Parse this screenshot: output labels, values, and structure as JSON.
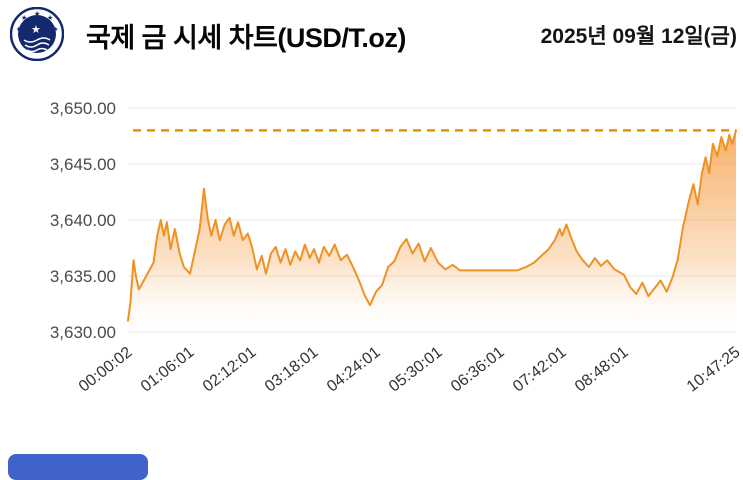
{
  "header": {
    "title": "국제 금 시세 차트(USD/T.oz)",
    "date": "2025년 09월 12일(금)",
    "logo_name": "gold-exchange-emblem"
  },
  "chart_data": {
    "type": "area",
    "title": "국제 금 시세 차트(USD/T.oz)",
    "date_label": "2025년 09월 12일(금)",
    "unit": "USD/T.oz",
    "ylim": [
      3630,
      3650
    ],
    "grid": "horizontal",
    "legend": "none",
    "colors": {
      "line": "#ef9224",
      "fill_top": "#f6a452",
      "fill_bottom": "#ffffff",
      "reference": "#f08c00",
      "grid": "#e7e7e7",
      "axis_text": "#4b4b4b"
    },
    "y_ticks": [
      {
        "label": "3,650.00",
        "value": 3650
      },
      {
        "label": "3,645.00",
        "value": 3645
      },
      {
        "label": "3,640.00",
        "value": 3640
      },
      {
        "label": "3,635.00",
        "value": 3635
      },
      {
        "label": "3,630.00",
        "value": 3630
      }
    ],
    "x_ticks": [
      {
        "label": "00:00:02",
        "pos": 0.0
      },
      {
        "label": "01:06:01",
        "pos": 0.102
      },
      {
        "label": "02:12:01",
        "pos": 0.204
      },
      {
        "label": "03:18:01",
        "pos": 0.306
      },
      {
        "label": "04:24:01",
        "pos": 0.408
      },
      {
        "label": "05:30:01",
        "pos": 0.51
      },
      {
        "label": "06:36:01",
        "pos": 0.612
      },
      {
        "label": "07:42:01",
        "pos": 0.714
      },
      {
        "label": "08:48:01",
        "pos": 0.816
      },
      {
        "label": "10:47:25",
        "pos": 1.0
      }
    ],
    "reference_line": {
      "value": 3648.0,
      "style": "dashed"
    },
    "series": [
      {
        "name": "gold-price",
        "points": [
          [
            0.0,
            3631.0
          ],
          [
            0.004,
            3632.6
          ],
          [
            0.009,
            3636.4
          ],
          [
            0.013,
            3635.0
          ],
          [
            0.018,
            3633.8
          ],
          [
            0.026,
            3634.6
          ],
          [
            0.034,
            3635.4
          ],
          [
            0.042,
            3636.2
          ],
          [
            0.048,
            3638.6
          ],
          [
            0.054,
            3640.0
          ],
          [
            0.059,
            3638.6
          ],
          [
            0.064,
            3639.8
          ],
          [
            0.07,
            3637.4
          ],
          [
            0.077,
            3639.2
          ],
          [
            0.085,
            3637.0
          ],
          [
            0.092,
            3635.8
          ],
          [
            0.102,
            3635.2
          ],
          [
            0.11,
            3637.2
          ],
          [
            0.118,
            3639.2
          ],
          [
            0.125,
            3642.8
          ],
          [
            0.131,
            3640.2
          ],
          [
            0.137,
            3638.6
          ],
          [
            0.144,
            3640.0
          ],
          [
            0.151,
            3638.2
          ],
          [
            0.159,
            3639.6
          ],
          [
            0.167,
            3640.2
          ],
          [
            0.174,
            3638.6
          ],
          [
            0.181,
            3639.8
          ],
          [
            0.189,
            3638.2
          ],
          [
            0.197,
            3638.8
          ],
          [
            0.204,
            3637.6
          ],
          [
            0.212,
            3635.6
          ],
          [
            0.22,
            3636.8
          ],
          [
            0.227,
            3635.2
          ],
          [
            0.235,
            3637.0
          ],
          [
            0.243,
            3637.6
          ],
          [
            0.251,
            3636.2
          ],
          [
            0.259,
            3637.4
          ],
          [
            0.267,
            3636.0
          ],
          [
            0.275,
            3637.2
          ],
          [
            0.283,
            3636.4
          ],
          [
            0.291,
            3637.8
          ],
          [
            0.299,
            3636.6
          ],
          [
            0.306,
            3637.4
          ],
          [
            0.314,
            3636.2
          ],
          [
            0.322,
            3637.6
          ],
          [
            0.331,
            3636.8
          ],
          [
            0.34,
            3637.8
          ],
          [
            0.35,
            3636.4
          ],
          [
            0.36,
            3636.9
          ],
          [
            0.37,
            3635.8
          ],
          [
            0.38,
            3634.6
          ],
          [
            0.39,
            3633.2
          ],
          [
            0.398,
            3632.4
          ],
          [
            0.408,
            3633.6
          ],
          [
            0.418,
            3634.2
          ],
          [
            0.428,
            3635.8
          ],
          [
            0.438,
            3636.3
          ],
          [
            0.448,
            3637.6
          ],
          [
            0.458,
            3638.3
          ],
          [
            0.468,
            3637.0
          ],
          [
            0.478,
            3637.9
          ],
          [
            0.488,
            3636.3
          ],
          [
            0.498,
            3637.5
          ],
          [
            0.51,
            3636.2
          ],
          [
            0.522,
            3635.6
          ],
          [
            0.534,
            3636.0
          ],
          [
            0.546,
            3635.5
          ],
          [
            0.56,
            3635.5
          ],
          [
            0.58,
            3635.5
          ],
          [
            0.6,
            3635.5
          ],
          [
            0.62,
            3635.5
          ],
          [
            0.64,
            3635.5
          ],
          [
            0.655,
            3635.8
          ],
          [
            0.668,
            3636.2
          ],
          [
            0.68,
            3636.8
          ],
          [
            0.692,
            3637.4
          ],
          [
            0.702,
            3638.2
          ],
          [
            0.71,
            3639.2
          ],
          [
            0.714,
            3638.6
          ],
          [
            0.721,
            3639.6
          ],
          [
            0.729,
            3638.4
          ],
          [
            0.738,
            3637.2
          ],
          [
            0.748,
            3636.4
          ],
          [
            0.758,
            3635.8
          ],
          [
            0.768,
            3636.6
          ],
          [
            0.778,
            3635.9
          ],
          [
            0.788,
            3636.4
          ],
          [
            0.8,
            3635.6
          ],
          [
            0.816,
            3635.1
          ],
          [
            0.826,
            3634.0
          ],
          [
            0.836,
            3633.4
          ],
          [
            0.846,
            3634.4
          ],
          [
            0.856,
            3633.2
          ],
          [
            0.866,
            3633.9
          ],
          [
            0.876,
            3634.6
          ],
          [
            0.886,
            3633.6
          ],
          [
            0.895,
            3634.8
          ],
          [
            0.904,
            3636.4
          ],
          [
            0.913,
            3639.4
          ],
          [
            0.922,
            3641.6
          ],
          [
            0.93,
            3643.2
          ],
          [
            0.937,
            3641.4
          ],
          [
            0.944,
            3644.2
          ],
          [
            0.95,
            3645.6
          ],
          [
            0.956,
            3644.2
          ],
          [
            0.962,
            3646.8
          ],
          [
            0.969,
            3645.7
          ],
          [
            0.976,
            3647.4
          ],
          [
            0.983,
            3646.2
          ],
          [
            0.989,
            3647.6
          ],
          [
            0.994,
            3646.8
          ],
          [
            1.0,
            3648.0
          ]
        ]
      }
    ]
  },
  "footer": {
    "partial_button_color": "#3f63c8"
  }
}
